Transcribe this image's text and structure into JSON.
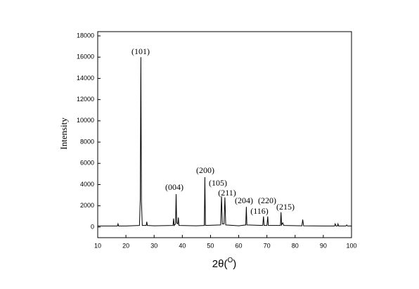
{
  "chart_data": {
    "type": "line",
    "ylabel": "Intensity",
    "xlabel": [
      "2θ(",
      "O",
      ")"
    ],
    "annotations": [
      "(101)",
      "(004)",
      "(200)",
      "(105)",
      "(211)",
      "(204)",
      "(116)",
      "(220)",
      "(215)"
    ],
    "xlim": [
      10,
      100
    ],
    "xticks": [
      10,
      20,
      30,
      40,
      50,
      60,
      70,
      80,
      90,
      100
    ],
    "ylim": [
      -1000,
      18400
    ],
    "yticks": [
      0,
      2000,
      4000,
      6000,
      8000,
      10000,
      12000,
      14000,
      16000,
      18000
    ],
    "color": "#000000",
    "x": [
      10,
      15,
      17,
      17.2,
      17.4,
      20,
      24.8,
      25.1,
      25.3,
      25.5,
      25.8,
      27.2,
      27.4,
      27.6,
      30,
      36.7,
      36.9,
      37.1,
      37.6,
      37.8,
      38.0,
      38.4,
      38.6,
      38.8,
      45,
      47.8,
      48.0,
      48.2,
      53.6,
      53.9,
      54.2,
      54.8,
      55.1,
      55.4,
      60,
      62.5,
      62.7,
      62.9,
      68.5,
      68.8,
      69.0,
      70.0,
      70.3,
      70.5,
      74.8,
      75.0,
      75.2,
      75.6,
      76.0,
      82.4,
      82.7,
      83.0,
      90,
      94.0,
      94.2,
      94.5,
      95.0,
      95.2,
      95.4,
      98.0,
      98.3,
      98.6,
      100
    ],
    "values": [
      100,
      100,
      100,
      300,
      100,
      100,
      150,
      2700,
      16000,
      2500,
      150,
      150,
      500,
      150,
      120,
      150,
      800,
      150,
      300,
      3100,
      400,
      300,
      900,
      150,
      120,
      150,
      4700,
      150,
      200,
      2900,
      300,
      300,
      2800,
      200,
      120,
      200,
      1900,
      200,
      150,
      1000,
      150,
      150,
      1000,
      150,
      150,
      1400,
      200,
      400,
      150,
      120,
      700,
      120,
      100,
      100,
      300,
      100,
      100,
      300,
      100,
      100,
      200,
      100,
      100
    ]
  }
}
